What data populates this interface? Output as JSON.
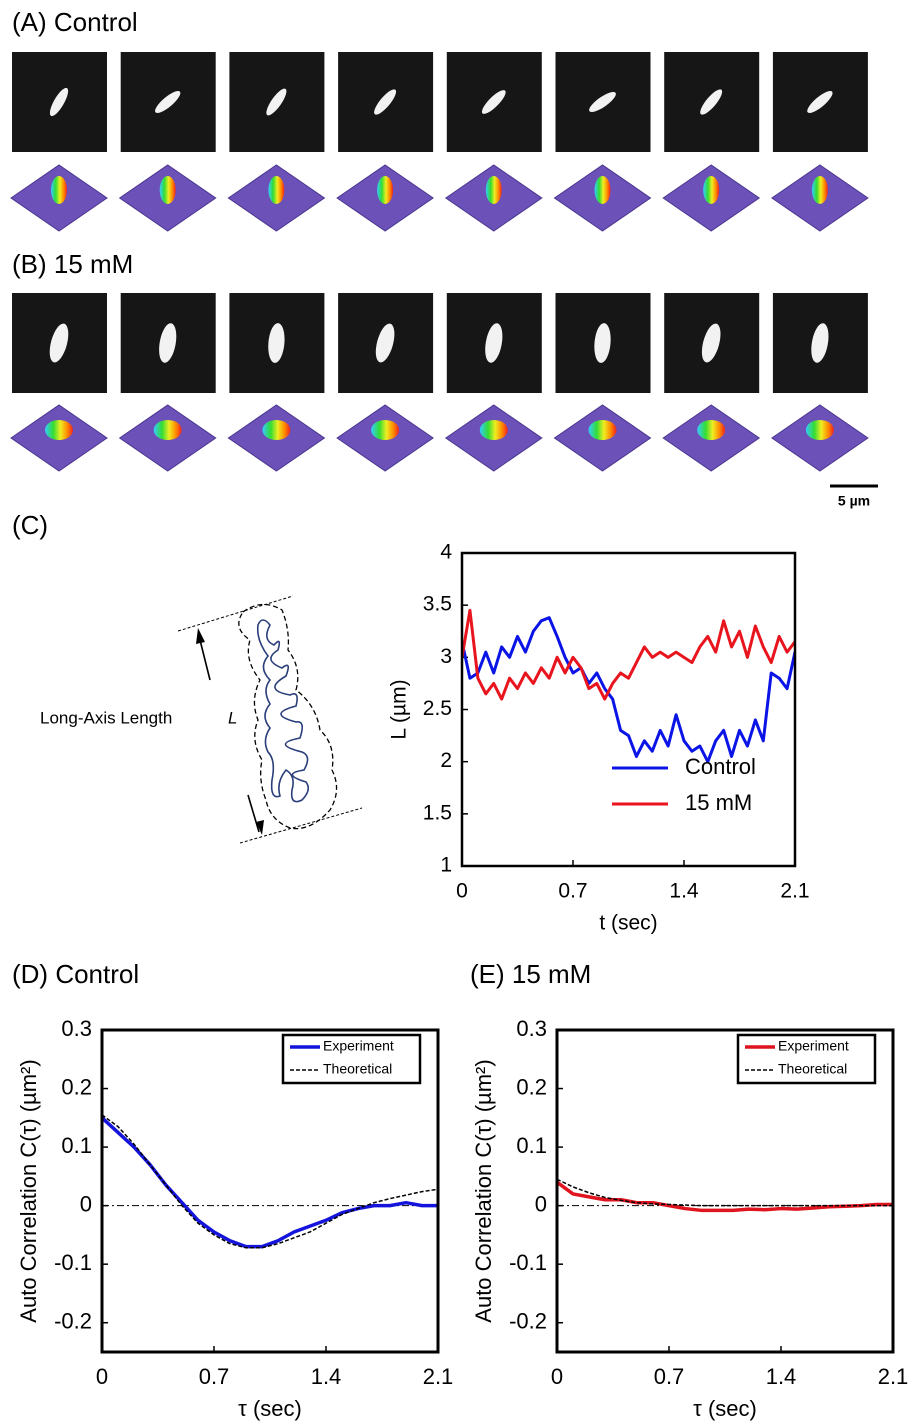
{
  "panels": [
    "(A) Control",
    "(B) 15 mM",
    "(C)",
    "(D) Control",
    "(E) 15 mM"
  ],
  "scale_bar": "5 µm",
  "diagram": {
    "label": "Long-Axis Length",
    "symbol": "L"
  },
  "chart_data": [
    {
      "type": "line",
      "xlabel": "t (sec)",
      "ylabel": "L (µm)",
      "x": [
        0,
        0.05,
        0.1,
        0.15,
        0.2,
        0.25,
        0.3,
        0.35,
        0.4,
        0.45,
        0.5,
        0.55,
        0.6,
        0.65,
        0.7,
        0.75,
        0.8,
        0.85,
        0.9,
        0.95,
        1.0,
        1.05,
        1.1,
        1.15,
        1.2,
        1.25,
        1.3,
        1.35,
        1.4,
        1.45,
        1.5,
        1.55,
        1.6,
        1.65,
        1.7,
        1.75,
        1.8,
        1.85,
        1.9,
        1.95,
        2.0,
        2.05,
        2.1
      ],
      "series": [
        {
          "name": "Control",
          "color": "#0a14e6",
          "values": [
            3.15,
            2.8,
            2.85,
            3.05,
            2.85,
            3.1,
            3.0,
            3.2,
            3.05,
            3.25,
            3.35,
            3.38,
            3.2,
            3.0,
            2.85,
            2.9,
            2.75,
            2.85,
            2.7,
            2.6,
            2.3,
            2.25,
            2.05,
            2.2,
            2.1,
            2.3,
            2.15,
            2.45,
            2.2,
            2.1,
            2.15,
            2.0,
            2.2,
            2.3,
            2.05,
            2.3,
            2.15,
            2.4,
            2.2,
            2.85,
            2.8,
            2.7,
            3.05
          ]
        },
        {
          "name": "15 mM",
          "color": "#e8141e",
          "values": [
            3.0,
            3.45,
            2.8,
            2.65,
            2.75,
            2.6,
            2.8,
            2.7,
            2.85,
            2.75,
            2.9,
            2.8,
            3.0,
            2.85,
            3.0,
            2.9,
            2.7,
            2.75,
            2.6,
            2.75,
            2.85,
            2.8,
            2.95,
            3.1,
            3.0,
            3.05,
            3.0,
            3.05,
            3.0,
            2.95,
            3.1,
            3.2,
            3.05,
            3.35,
            3.1,
            3.25,
            3.0,
            3.3,
            3.1,
            2.95,
            3.2,
            3.05,
            3.15
          ]
        }
      ],
      "xlim": [
        0,
        2.1
      ],
      "xticks": [
        0,
        0.7,
        1.4,
        2.1
      ],
      "ylim": [
        1,
        4
      ],
      "yticks": [
        1,
        1.5,
        2,
        2.5,
        3,
        3.5,
        4
      ],
      "legend": "lower right",
      "legend_frame": false,
      "zero_line": false
    },
    {
      "type": "line",
      "xlabel": "τ (sec)",
      "ylabel": "Auto Correlation C(τ) (µm²)",
      "x": [
        0,
        0.1,
        0.2,
        0.3,
        0.4,
        0.5,
        0.6,
        0.7,
        0.8,
        0.9,
        1.0,
        1.1,
        1.2,
        1.3,
        1.4,
        1.5,
        1.6,
        1.7,
        1.8,
        1.9,
        2.0,
        2.1
      ],
      "series": [
        {
          "name": "Experiment",
          "color": "#1414dc",
          "dash": "solid",
          "values": [
            0.15,
            0.125,
            0.1,
            0.07,
            0.035,
            0.005,
            -0.025,
            -0.045,
            -0.06,
            -0.07,
            -0.07,
            -0.06,
            -0.045,
            -0.035,
            -0.025,
            -0.012,
            -0.005,
            0.0,
            0.0,
            0.005,
            0.0,
            0.0
          ]
        },
        {
          "name": "Theoretical",
          "color": "#000000",
          "dash": "dashed",
          "values": [
            0.155,
            0.135,
            0.105,
            0.07,
            0.035,
            0.0,
            -0.03,
            -0.05,
            -0.065,
            -0.072,
            -0.072,
            -0.065,
            -0.055,
            -0.045,
            -0.03,
            -0.015,
            -0.005,
            0.005,
            0.012,
            0.018,
            0.024,
            0.028
          ]
        }
      ],
      "xlim": [
        0,
        2.1
      ],
      "xticks": [
        0,
        0.7,
        1.4,
        2.1
      ],
      "ylim": [
        -0.25,
        0.3
      ],
      "yticks": [
        -0.2,
        -0.1,
        0,
        0.1,
        0.2,
        0.3
      ],
      "legend": "upper right",
      "legend_frame": true,
      "zero_line": true
    },
    {
      "type": "line",
      "xlabel": "τ (sec)",
      "ylabel": "Auto Correlation C(τ) (µm²)",
      "x": [
        0,
        0.1,
        0.2,
        0.3,
        0.4,
        0.5,
        0.6,
        0.7,
        0.8,
        0.9,
        1.0,
        1.1,
        1.2,
        1.3,
        1.4,
        1.5,
        1.6,
        1.7,
        1.8,
        1.9,
        2.0,
        2.1
      ],
      "series": [
        {
          "name": "Experiment",
          "color": "#e0141e",
          "dash": "solid",
          "values": [
            0.04,
            0.02,
            0.015,
            0.01,
            0.01,
            0.005,
            0.005,
            0.0,
            -0.005,
            -0.008,
            -0.008,
            -0.008,
            -0.006,
            -0.007,
            -0.005,
            -0.006,
            -0.004,
            -0.002,
            -0.001,
            0.0,
            0.002,
            0.002
          ]
        },
        {
          "name": "Theoretical",
          "color": "#000000",
          "dash": "dashed",
          "values": [
            0.045,
            0.032,
            0.022,
            0.014,
            0.009,
            0.005,
            0.003,
            0.002,
            0.001,
            0.0,
            0.0,
            0.0,
            0.0,
            0.0,
            0.0,
            0.0,
            0.0,
            0.0,
            0.0,
            0.0,
            0.0,
            0.0
          ]
        }
      ],
      "xlim": [
        0,
        2.1
      ],
      "xticks": [
        0,
        0.7,
        1.4,
        2.1
      ],
      "ylim": [
        -0.25,
        0.3
      ],
      "yticks": [
        -0.2,
        -0.1,
        0,
        0.1,
        0.2,
        0.3
      ],
      "legend": "upper right",
      "legend_frame": true,
      "zero_line": true
    }
  ]
}
